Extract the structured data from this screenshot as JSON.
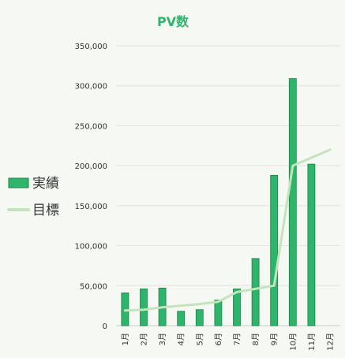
{
  "chart_data": {
    "type": "bar",
    "title": "PV数",
    "xlabel": "",
    "ylabel": "",
    "categories": [
      "1月",
      "2月",
      "3月",
      "4月",
      "5月",
      "6月",
      "7月",
      "8月",
      "9月",
      "10月",
      "11月",
      "12月"
    ],
    "series": [
      {
        "name": "実績",
        "type": "bar",
        "values": [
          41000,
          46000,
          47000,
          18000,
          20000,
          32000,
          46000,
          84000,
          188000,
          309000,
          202000,
          null
        ]
      },
      {
        "name": "目標",
        "type": "line",
        "values": [
          19000,
          20000,
          23000,
          25000,
          27000,
          30000,
          42000,
          46000,
          50000,
          200000,
          210000,
          220000
        ]
      }
    ],
    "ylim": [
      0,
      350000
    ],
    "y_ticks": [
      "0",
      "50,000",
      "100,000",
      "150,000",
      "200,000",
      "250,000",
      "300,000",
      "350,000"
    ],
    "grid": true,
    "legend_position": "left",
    "colors": {
      "bar_fill": "#2db56b",
      "bar_stroke": "#1f7f47",
      "target_line": "#c5e3bc",
      "title": "#2db56b",
      "grid": "#dfe3de",
      "axis_text": "#333333",
      "legend_text": "#333333",
      "background": "#f6f8f4"
    }
  }
}
